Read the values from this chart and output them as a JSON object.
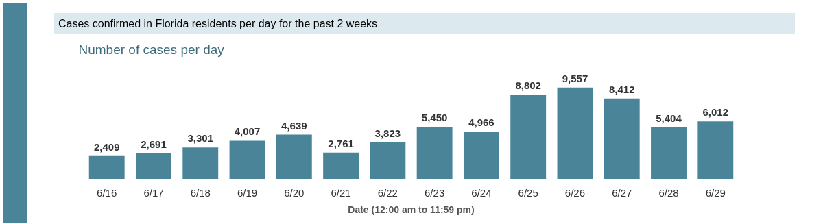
{
  "chart_data": {
    "type": "bar",
    "title": "Cases confirmed in Florida residents per day for the past 2 weeks",
    "subtitle": "Number of cases per day",
    "xlabel": "Date (12:00 am to 11:59 pm)",
    "categories": [
      "6/16",
      "6/17",
      "6/18",
      "6/19",
      "6/20",
      "6/21",
      "6/22",
      "6/23",
      "6/24",
      "6/25",
      "6/26",
      "6/27",
      "6/28",
      "6/29"
    ],
    "values": [
      2409,
      2691,
      3301,
      4007,
      4639,
      2761,
      3823,
      5450,
      4966,
      8802,
      9557,
      8412,
      5404,
      6012
    ],
    "value_labels": [
      "2,409",
      "2,691",
      "3,301",
      "4,007",
      "4,639",
      "2,761",
      "3,823",
      "5,450",
      "4,966",
      "8,802",
      "9,557",
      "8,412",
      "5,404",
      "6,012"
    ],
    "color": "#4a8499",
    "grid": false
  }
}
